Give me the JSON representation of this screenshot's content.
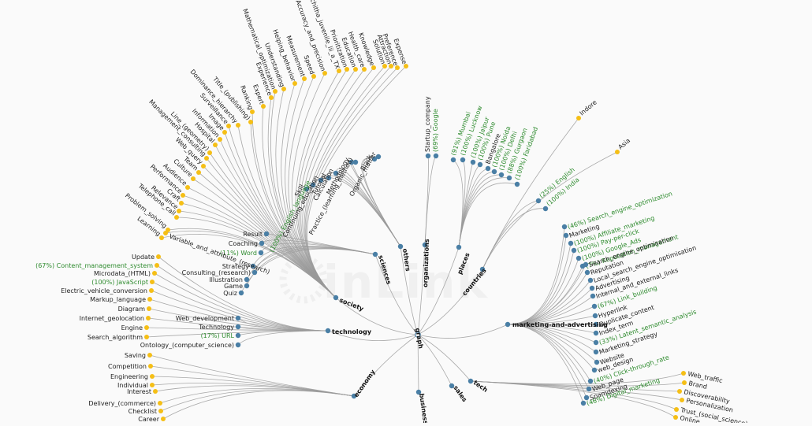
{
  "colors": {
    "branch": "#4a7fa5",
    "leaf": "#f5bf16",
    "root_fill": "#ffffff",
    "root_stroke": "#4a7fa5",
    "link": "#9a9a9a",
    "green_text": "#2e8b2e"
  },
  "watermark": "inLink",
  "root": {
    "label": "graph"
  },
  "branches": [
    {
      "label": "sciences",
      "children": [
        "Result",
        "Coaching",
        "(11%) Word",
        "Strategy",
        "Consulting_(research)",
        "Illustration",
        "Game",
        "Quiz"
      ]
    },
    {
      "label": "others",
      "children": [
        "Skill",
        "(100%) English_language",
        "Continuing_education",
        "Tutorial",
        "Calculation",
        "Methodology",
        "Practice_(learning_method)",
        "Black",
        "Organic_matter"
      ]
    },
    {
      "label": "organizations",
      "children": [
        "Startup_company",
        "(69%) Google"
      ]
    },
    {
      "label": "places",
      "children": [
        "(91%) Mumbai",
        "(100%) Lucknow",
        "(100%) Jaipur",
        "(100%) Pune",
        "Bangalore",
        "(100%) Noida",
        "(100%) Delhi",
        "(88%) Gurgaon",
        "(100%) Faridabad"
      ]
    },
    {
      "label": "countries",
      "children": [
        "(25%) English",
        "(100%) India",
        "Indore",
        "Asia"
      ]
    },
    {
      "label": "marketing-and-advertising",
      "children": [
        "(46%) Search_engine_optimization",
        "Marketing",
        "(100%) Affiliate_marketing",
        "(100%) Pay-per-click",
        "(100%) Google_Ads",
        "(7%) Reputation_management",
        "Search_engine_optimisation",
        "Reputation",
        "Local_search_engine_optimisation",
        "Advertising",
        "Internal_and_external_links",
        "(67%) Link_building",
        "Hyperlink",
        "Duplicate_content",
        "Index_term",
        "(33%) Latent_semantic_analysis",
        "Marketing_strategy",
        "Website",
        "web_design",
        "(40%) Click-through_rate",
        "Web_page",
        "Spamdexing",
        "(46%) Digital_marketing"
      ]
    },
    {
      "label": "society",
      "children": [
        "Learning",
        "Problem_solving",
        "Telephone_call",
        "Relevance",
        "Craft",
        "Performance",
        "Audience",
        "Culture",
        "Team",
        "Web_query",
        "Management_consulting",
        "Line_(geometry)",
        "Hospital",
        "Information",
        "Image",
        "Surveillance",
        "Dominance_hierarchy",
        "Title_(publishing)",
        "Ranking",
        "Expert",
        "Experience",
        "Mathematical_optimization",
        "Understanding",
        "Helping_behavior",
        "Measurement",
        "Speed",
        "Accuracy_and_precision",
        "Uruchitha_juvenile_lii_a_TX",
        "Prioritization",
        "Education",
        "Health_care",
        "Knowledge",
        "Solution",
        "Attraction",
        "Preference",
        "Expense",
        "Variable_and_attribute_(research)"
      ]
    },
    {
      "label": "technology",
      "children": [
        "Update",
        "(67%) Content_management_system",
        "Microdata_(HTML)",
        "(100%) JavaScript",
        "Electric_vehicle_conversion",
        "Markup_language",
        "Diagram",
        "Internet_geolocation",
        "Engine",
        "Search_algorithm",
        "Web_development",
        "Technology",
        "(17%) URL",
        "Ontology_(computer_science)"
      ]
    },
    {
      "label": "economy",
      "children": [
        "Saving",
        "Competition",
        "Engineering",
        "Individual",
        "Interest",
        "Delivery_(commerce)",
        "Checklist",
        "Career"
      ]
    },
    {
      "label": "business",
      "children": []
    },
    {
      "label": "sales",
      "children": []
    },
    {
      "label": "tech",
      "children": [
        "Web_traffic",
        "Brand",
        "Discoverability",
        "Personalization",
        "Trust_(social_science)",
        "Online"
      ]
    }
  ]
}
